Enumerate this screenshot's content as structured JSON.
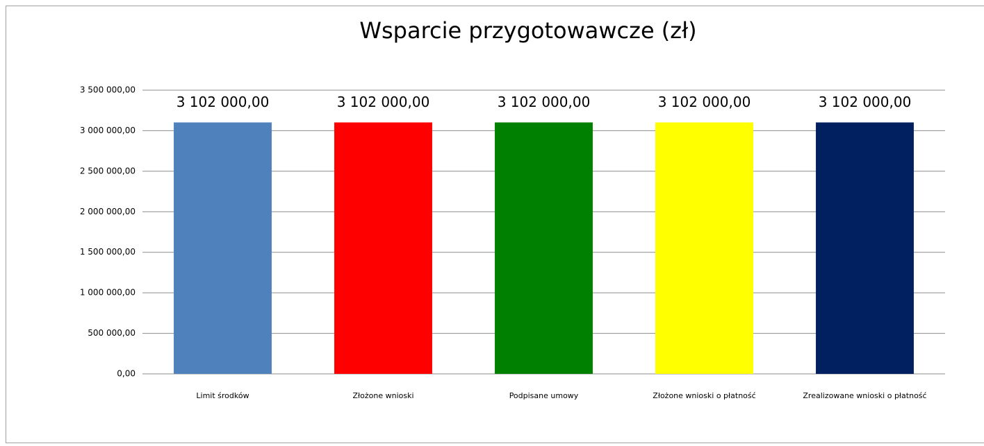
{
  "chart_data": {
    "type": "bar",
    "title": "Wsparcie przygotowawcze (zł)",
    "categories": [
      "Limit środków",
      "Złożone wnioski",
      "Podpisane umowy",
      "Złożone wnioski o płatność",
      "Zrealizowane wnioski o płatność"
    ],
    "values": [
      3102000,
      3102000,
      3102000,
      3102000,
      3102000
    ],
    "value_labels": [
      "3 102 000,00",
      "3 102 000,00",
      "3 102 000,00",
      "3 102 000,00",
      "3 102 000,00"
    ],
    "colors": [
      "#4f81bd",
      "#ff0000",
      "#008000",
      "#ffff00",
      "#002060"
    ],
    "ylim": [
      0,
      3500000
    ],
    "yticks": [
      {
        "value": 0,
        "label": "0,00"
      },
      {
        "value": 500000,
        "label": "500 000,00"
      },
      {
        "value": 1000000,
        "label": "1 000 000,00"
      },
      {
        "value": 1500000,
        "label": "1 500 000,00"
      },
      {
        "value": 2000000,
        "label": "2 000 000,00"
      },
      {
        "value": 2500000,
        "label": "2 500 000,00"
      },
      {
        "value": 3000000,
        "label": "3 000 000,00"
      },
      {
        "value": 3500000,
        "label": "3 500 000,00"
      }
    ],
    "grid": true
  }
}
